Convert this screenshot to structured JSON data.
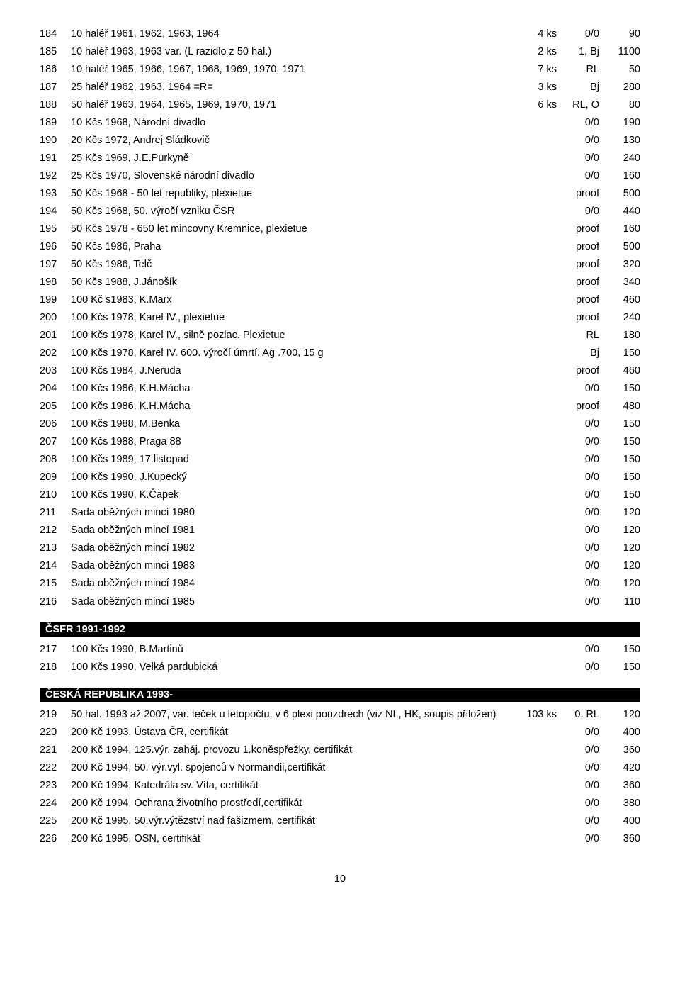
{
  "sections": [
    {
      "rows": [
        {
          "n": "184",
          "d": "10 haléř 1961, 1962, 1963, 1964",
          "q": "4 ks",
          "c": "0/0",
          "p": "90"
        },
        {
          "n": "185",
          "d": "10 haléř 1963, 1963 var. (L razidlo z 50 hal.)",
          "q": "2 ks",
          "c": "1, Bj",
          "p": "1100"
        },
        {
          "n": "186",
          "d": "10 haléř 1965, 1966, 1967, 1968, 1969, 1970, 1971",
          "q": "7 ks",
          "c": "RL",
          "p": "50"
        },
        {
          "n": "187",
          "d": "25 haléř 1962, 1963, 1964 =R=",
          "q": "3 ks",
          "c": "Bj",
          "p": "280"
        },
        {
          "n": "188",
          "d": "50 haléř 1963, 1964, 1965, 1969, 1970, 1971",
          "q": "6 ks",
          "c": "RL, O",
          "p": "80"
        },
        {
          "n": "189",
          "d": "10 Kčs 1968, Národní divadlo",
          "q": "",
          "c": "0/0",
          "p": "190"
        },
        {
          "n": "190",
          "d": "20 Kčs 1972, Andrej Sládkovič",
          "q": "",
          "c": "0/0",
          "p": "130"
        },
        {
          "n": "191",
          "d": "25 Kčs 1969, J.E.Purkyně",
          "q": "",
          "c": "0/0",
          "p": "240"
        },
        {
          "n": "192",
          "d": "25 Kčs 1970, Slovenské národní divadlo",
          "q": "",
          "c": "0/0",
          "p": "160"
        },
        {
          "n": "193",
          "d": "50 Kčs 1968 - 50 let republiky, plexietue",
          "q": "",
          "c": "proof",
          "p": "500"
        },
        {
          "n": "194",
          "d": "50 Kčs 1968, 50. výročí vzniku ČSR",
          "q": "",
          "c": "0/0",
          "p": "440"
        },
        {
          "n": "195",
          "d": "50 Kčs 1978 - 650 let mincovny Kremnice, plexietue",
          "q": "",
          "c": "proof",
          "p": "160"
        },
        {
          "n": "196",
          "d": "50 Kčs 1986, Praha",
          "q": "",
          "c": "proof",
          "p": "500"
        },
        {
          "n": "197",
          "d": "50 Kčs 1986, Telč",
          "q": "",
          "c": "proof",
          "p": "320"
        },
        {
          "n": "198",
          "d": "50 Kčs 1988, J.Jánošík",
          "q": "",
          "c": "proof",
          "p": "340"
        },
        {
          "n": "199",
          "d": "100 Kč s1983, K.Marx",
          "q": "",
          "c": "proof",
          "p": "460"
        },
        {
          "n": "200",
          "d": "100 Kčs 1978, Karel IV., plexietue",
          "q": "",
          "c": "proof",
          "p": "240"
        },
        {
          "n": "201",
          "d": "100 Kčs 1978, Karel IV., silně pozlac. Plexietue",
          "q": "",
          "c": "RL",
          "p": "180"
        },
        {
          "n": "202",
          "d": "100 Kčs 1978, Karel IV. 600. výročí úmrtí. Ag .700, 15 g",
          "q": "",
          "c": "Bj",
          "p": "150"
        },
        {
          "n": "203",
          "d": "100 Kčs 1984, J.Neruda",
          "q": "",
          "c": "proof",
          "p": "460"
        },
        {
          "n": "204",
          "d": "100 Kčs 1986, K.H.Mácha",
          "q": "",
          "c": "0/0",
          "p": "150"
        },
        {
          "n": "205",
          "d": "100 Kčs 1986, K.H.Mácha",
          "q": "",
          "c": "proof",
          "p": "480"
        },
        {
          "n": "206",
          "d": "100 Kčs 1988, M.Benka",
          "q": "",
          "c": "0/0",
          "p": "150"
        },
        {
          "n": "207",
          "d": "100 Kčs 1988, Praga 88",
          "q": "",
          "c": "0/0",
          "p": "150"
        },
        {
          "n": "208",
          "d": "100 Kčs 1989, 17.listopad",
          "q": "",
          "c": "0/0",
          "p": "150"
        },
        {
          "n": "209",
          "d": "100 Kčs 1990, J.Kupecký",
          "q": "",
          "c": "0/0",
          "p": "150"
        },
        {
          "n": "210",
          "d": "100 Kčs 1990, K.Čapek",
          "q": "",
          "c": "0/0",
          "p": "150"
        },
        {
          "n": "211",
          "d": "Sada oběžných mincí 1980",
          "q": "",
          "c": "0/0",
          "p": "120"
        },
        {
          "n": "212",
          "d": "Sada oběžných mincí 1981",
          "q": "",
          "c": "0/0",
          "p": "120"
        },
        {
          "n": "213",
          "d": "Sada oběžných mincí 1982",
          "q": "",
          "c": "0/0",
          "p": "120"
        },
        {
          "n": "214",
          "d": "Sada oběžných mincí 1983",
          "q": "",
          "c": "0/0",
          "p": "120"
        },
        {
          "n": "215",
          "d": "Sada oběžných mincí 1984",
          "q": "",
          "c": "0/0",
          "p": "120"
        },
        {
          "n": "216",
          "d": "Sada oběžných mincí 1985",
          "q": "",
          "c": "0/0",
          "p": "110"
        }
      ]
    },
    {
      "title": "ČSFR 1991-1992",
      "rows": [
        {
          "n": "217",
          "d": "100 Kčs 1990, B.Martinů",
          "q": "",
          "c": "0/0",
          "p": "150"
        },
        {
          "n": "218",
          "d": "100 Kčs 1990, Velká pardubická",
          "q": "",
          "c": "0/0",
          "p": "150"
        }
      ]
    },
    {
      "title": "ČESKÁ REPUBLIKA 1993-",
      "rows": [
        {
          "n": "219",
          "d": "50 hal. 1993 až 2007, var. teček u letopočtu, v 6 plexi pouzdrech (viz NL, HK, soupis přiložen)",
          "q": "103 ks",
          "c": "0, RL",
          "p": "120"
        },
        {
          "n": "220",
          "d": "200 Kč 1993, Ústava ČR, certifikát",
          "q": "",
          "c": "0/0",
          "p": "400"
        },
        {
          "n": "221",
          "d": "200 Kč 1994, 125.výr. zaháj. provozu 1.koněspřežky, certifikát",
          "q": "",
          "c": "0/0",
          "p": "360"
        },
        {
          "n": "222",
          "d": "200 Kč 1994, 50. výr.vyl. spojenců v Normandii,certifikát",
          "q": "",
          "c": "0/0",
          "p": "420"
        },
        {
          "n": "223",
          "d": "200 Kč 1994, Katedrála sv. Víta, certifikát",
          "q": "",
          "c": "0/0",
          "p": "360"
        },
        {
          "n": "224",
          "d": "200 Kč 1994, Ochrana životního prostředí,certifikát",
          "q": "",
          "c": "0/0",
          "p": "380"
        },
        {
          "n": "225",
          "d": "200 Kč 1995, 50.výr.výtězství nad fašizmem, certifikát",
          "q": "",
          "c": "0/0",
          "p": "400"
        },
        {
          "n": "226",
          "d": "200 Kč 1995, OSN, certifikát",
          "q": "",
          "c": "0/0",
          "p": "360"
        }
      ]
    }
  ],
  "page_number": "10"
}
